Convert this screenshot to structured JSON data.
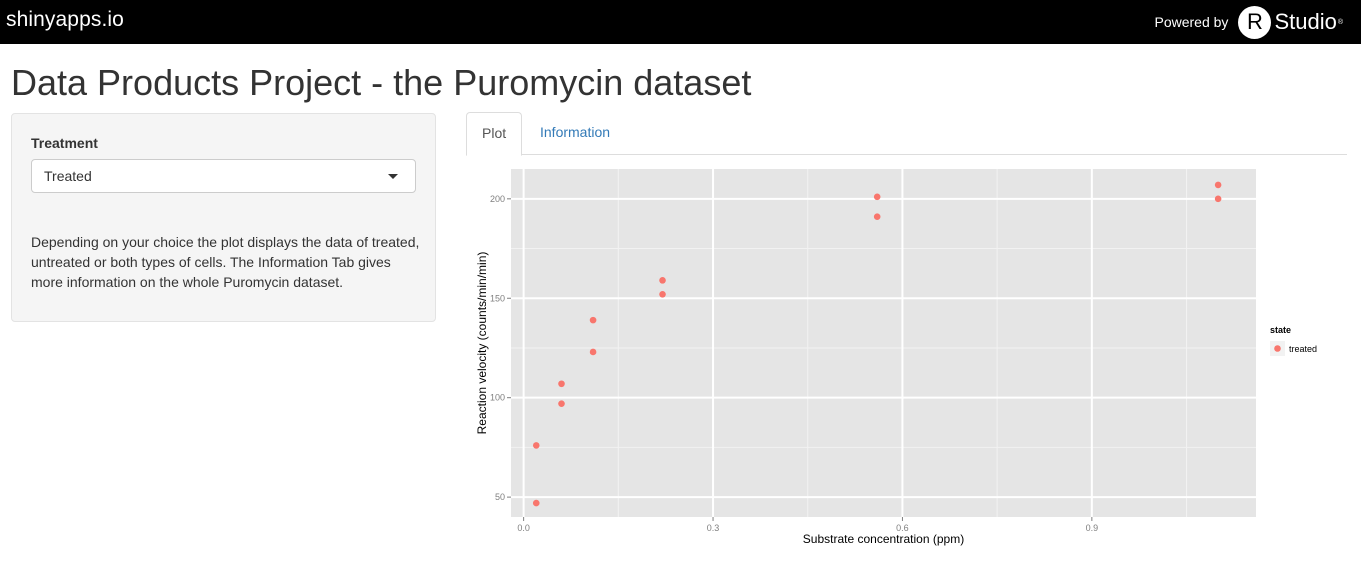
{
  "navbar": {
    "brand": "shinyapps.io",
    "powered_by": "Powered by",
    "r_logo": "R",
    "studio": "Studio",
    "reg_mark": "®"
  },
  "page": {
    "title": "Data Products Project - the Puromycin dataset"
  },
  "sidebar": {
    "treatment_label": "Treatment",
    "treatment_selected": "Treated",
    "help_text": "Depending on your choice the plot displays the data of treated, untreated or both types of cells. The Information Tab gives more information on the whole Puromycin dataset."
  },
  "tabs": [
    {
      "label": "Plot",
      "active": true
    },
    {
      "label": "Information",
      "active": false
    }
  ],
  "chart_data": {
    "type": "scatter",
    "title": "",
    "xlabel": "Substrate concentration (ppm)",
    "ylabel": "Reaction velocity (counts/min/min)",
    "xlim": [
      -0.02,
      1.16
    ],
    "ylim": [
      40,
      215
    ],
    "xticks": [
      0.0,
      0.3,
      0.6,
      0.9
    ],
    "xtick_labels": [
      "0.0",
      "0.3",
      "0.6",
      "0.9"
    ],
    "yticks": [
      50,
      100,
      150,
      200
    ],
    "ytick_labels": [
      "50",
      "100",
      "150",
      "200"
    ],
    "grid": true,
    "legend": {
      "title": "state",
      "entries": [
        "treated"
      ],
      "placement": "right"
    },
    "point_color": "#F8766D",
    "panel_color": "#E5E5E5",
    "series": [
      {
        "name": "treated",
        "x": [
          0.02,
          0.02,
          0.06,
          0.06,
          0.11,
          0.11,
          0.22,
          0.22,
          0.56,
          0.56,
          1.1,
          1.1
        ],
        "y": [
          76,
          47,
          97,
          107,
          123,
          139,
          159,
          152,
          191,
          201,
          207,
          200
        ]
      }
    ]
  }
}
